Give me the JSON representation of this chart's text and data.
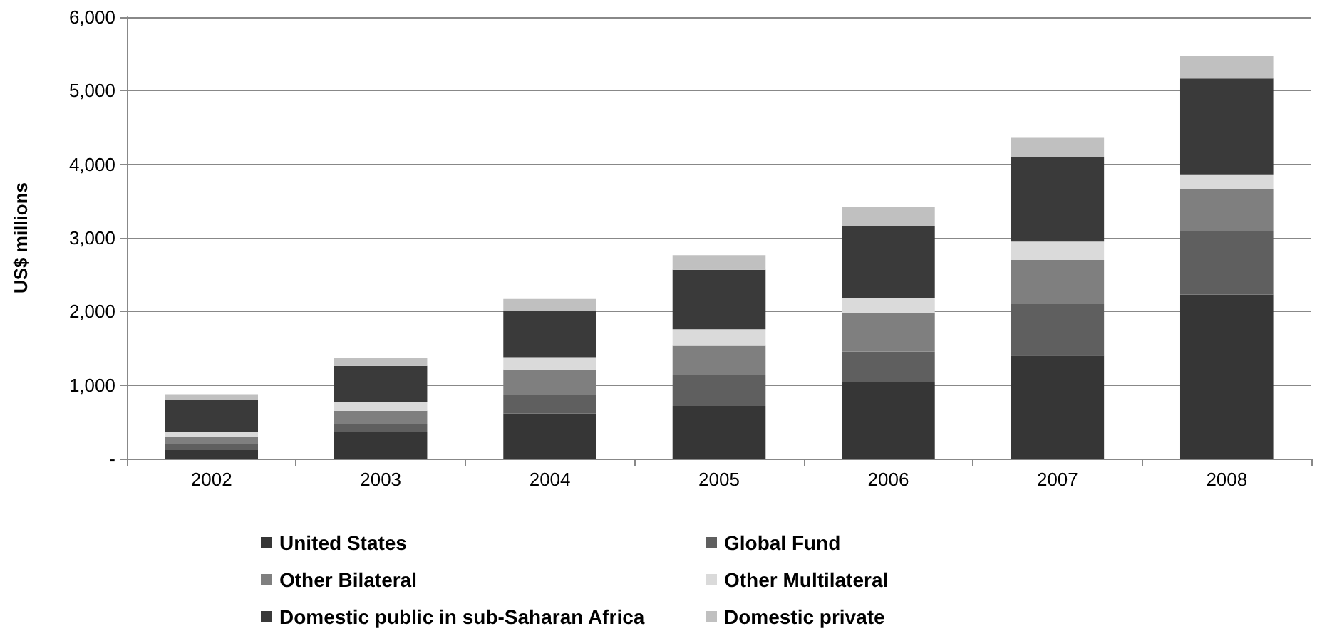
{
  "chart_data": {
    "type": "bar",
    "stacked": true,
    "ylabel": "US$ millions",
    "categories": [
      "2002",
      "2003",
      "2004",
      "2005",
      "2006",
      "2007",
      "2008"
    ],
    "series": [
      {
        "name": "United States",
        "color": "#363636",
        "values": [
          116,
          360,
          613,
          716,
          1040,
          1400,
          2230
        ]
      },
      {
        "name": "Global Fund",
        "color": "#5f5f5f",
        "values": [
          83,
          110,
          252,
          419,
          416,
          700,
          860
        ]
      },
      {
        "name": "Other Bilateral",
        "color": "#7f7f7f",
        "values": [
          97,
          180,
          348,
          399,
          530,
          600,
          570
        ]
      },
      {
        "name": "Other Multilateral",
        "color": "#dadada",
        "values": [
          66,
          115,
          166,
          226,
          194,
          250,
          195
        ]
      },
      {
        "name": "Domestic public in sub-Saharan Africa",
        "color": "#3a3a3a",
        "values": [
          431,
          495,
          630,
          807,
          980,
          1150,
          1310
        ]
      },
      {
        "name": "Domestic private",
        "color": "#c0c0c0",
        "values": [
          83,
          115,
          160,
          199,
          260,
          260,
          310
        ]
      }
    ],
    "ylim": [
      0,
      6000
    ],
    "yticks": [
      {
        "value": 0,
        "label": "-"
      },
      {
        "value": 1000,
        "label": "1,000"
      },
      {
        "value": 2000,
        "label": "2,000"
      },
      {
        "value": 3000,
        "label": "3,000"
      },
      {
        "value": 4000,
        "label": "4,000"
      },
      {
        "value": 5000,
        "label": "5,000"
      },
      {
        "value": 6000,
        "label": "6,000"
      }
    ],
    "grid": "y",
    "legend": "bottom"
  }
}
